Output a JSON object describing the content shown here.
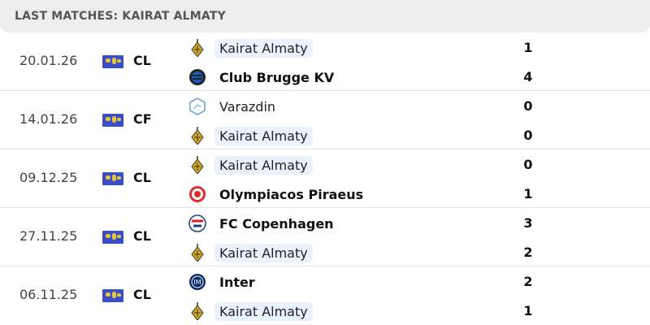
{
  "header": {
    "title": "LAST MATCHES: KAIRAT ALMATY"
  },
  "matches": [
    {
      "date": "20.01.26",
      "competition": "CL",
      "home": {
        "name": "Kairat Almaty",
        "logo": "kairat",
        "score": "1",
        "highlight": true,
        "winner": false
      },
      "away": {
        "name": "Club Brugge KV",
        "logo": "brugge",
        "score": "4",
        "highlight": false,
        "winner": true
      }
    },
    {
      "date": "14.01.26",
      "competition": "CF",
      "home": {
        "name": "Varazdin",
        "logo": "varazdin",
        "score": "0",
        "highlight": false,
        "winner": false
      },
      "away": {
        "name": "Kairat Almaty",
        "logo": "kairat",
        "score": "0",
        "highlight": true,
        "winner": false
      }
    },
    {
      "date": "09.12.25",
      "competition": "CL",
      "home": {
        "name": "Kairat Almaty",
        "logo": "kairat",
        "score": "0",
        "highlight": true,
        "winner": false
      },
      "away": {
        "name": "Olympiacos Piraeus",
        "logo": "olympiacos",
        "score": "1",
        "highlight": false,
        "winner": true
      }
    },
    {
      "date": "27.11.25",
      "competition": "CL",
      "home": {
        "name": "FC Copenhagen",
        "logo": "copenhagen",
        "score": "3",
        "highlight": false,
        "winner": true
      },
      "away": {
        "name": "Kairat Almaty",
        "logo": "kairat",
        "score": "2",
        "highlight": true,
        "winner": false
      }
    },
    {
      "date": "06.11.25",
      "competition": "CL",
      "home": {
        "name": "Inter",
        "logo": "inter",
        "score": "2",
        "highlight": false,
        "winner": true
      },
      "away": {
        "name": "Kairat Almaty",
        "logo": "kairat",
        "score": "1",
        "highlight": true,
        "winner": false
      }
    }
  ],
  "colors": {
    "highlight": "#eaf3fd",
    "header_bg": "#ededed",
    "flag": "#3b4fc4"
  }
}
